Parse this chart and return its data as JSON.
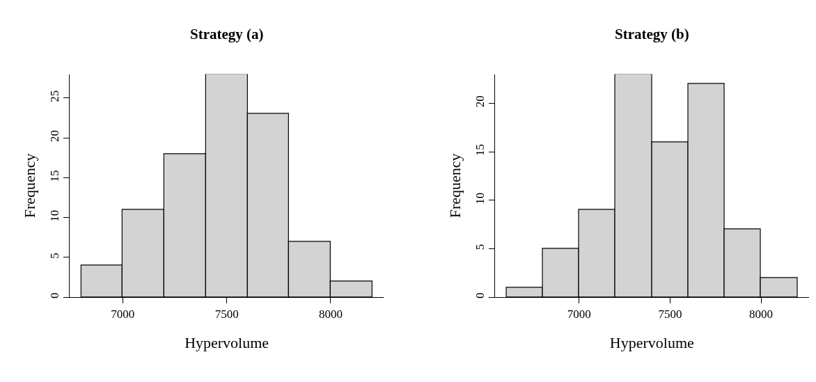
{
  "chart_data": [
    {
      "type": "histogram",
      "title": "Strategy (a)",
      "xlabel": "Hypervolume",
      "ylabel": "Frequency",
      "bins": [
        6800,
        7000,
        7200,
        7400,
        7600,
        7800,
        8000,
        8200
      ],
      "values": [
        4,
        11,
        18,
        28,
        23,
        7,
        2
      ],
      "color": "#d3d3d3",
      "xlim": [
        6744,
        8256
      ],
      "xticks": [
        7000,
        7500,
        8000
      ],
      "ylim": [
        0,
        28
      ],
      "yticks": [
        0,
        5,
        10,
        15,
        20,
        25
      ]
    },
    {
      "type": "histogram",
      "title": "Strategy (b)",
      "xlabel": "Hypervolume",
      "ylabel": "Frequency",
      "bins": [
        6600,
        6800,
        7000,
        7200,
        7400,
        7600,
        7800,
        8000,
        8200
      ],
      "values": [
        1,
        5,
        9,
        23,
        16,
        22,
        7,
        2
      ],
      "color": "#d3d3d3",
      "xlim": [
        6536,
        8264
      ],
      "xticks": [
        7000,
        7500,
        8000
      ],
      "ylim": [
        0,
        23
      ],
      "yticks": [
        0,
        5,
        10,
        15,
        20
      ]
    }
  ]
}
